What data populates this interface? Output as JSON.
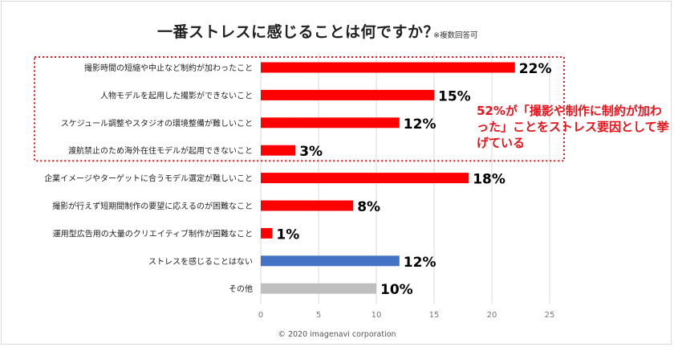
{
  "header": {
    "title": "一番ストレスに感じることは何ですか？",
    "note": "※複数回答可"
  },
  "callout": {
    "text": "52%が「撮影や制作に制約が加わった」ことをストレス要因として挙げている",
    "color": "#e8131b"
  },
  "footer": {
    "copyright": "© 2020 imagenavi corporation"
  },
  "chart_data": {
    "type": "bar",
    "orientation": "horizontal",
    "title": "一番ストレスに感じることは何ですか？",
    "categories": [
      "撮影時間の短縮や中止など制約が加わったこと",
      "人物モデルを起用した撮影ができないこと",
      "スケジュール調整やスタジオの環境整備が難しいこと",
      "渡航禁止のため海外在住モデルが起用できないこと",
      "企業イメージやターゲットに合うモデル選定が難しいこと",
      "撮影が行えず短期間制作の要望に応えるのが困難なこと",
      "運用型広告用の大量のクリエイティブ制作が困難なこと",
      "ストレスを感じることはない",
      "その他"
    ],
    "values": [
      22,
      15,
      12,
      3,
      18,
      8,
      1,
      12,
      10
    ],
    "value_labels": [
      "22%",
      "15%",
      "12%",
      "3%",
      "18%",
      "8%",
      "1%",
      "12%",
      "10%"
    ],
    "bar_colors": [
      "#ff0000",
      "#ff0000",
      "#ff0000",
      "#ff0000",
      "#ff0000",
      "#ff0000",
      "#ff0000",
      "#4472c4",
      "#bfbfbf"
    ],
    "highlight_group": [
      0,
      1,
      2,
      3
    ],
    "highlight_color": "#e8131b",
    "xlim": [
      0,
      25
    ],
    "xticks": [
      0,
      5,
      10,
      15,
      20,
      25
    ],
    "grid": true,
    "legend": "none"
  }
}
